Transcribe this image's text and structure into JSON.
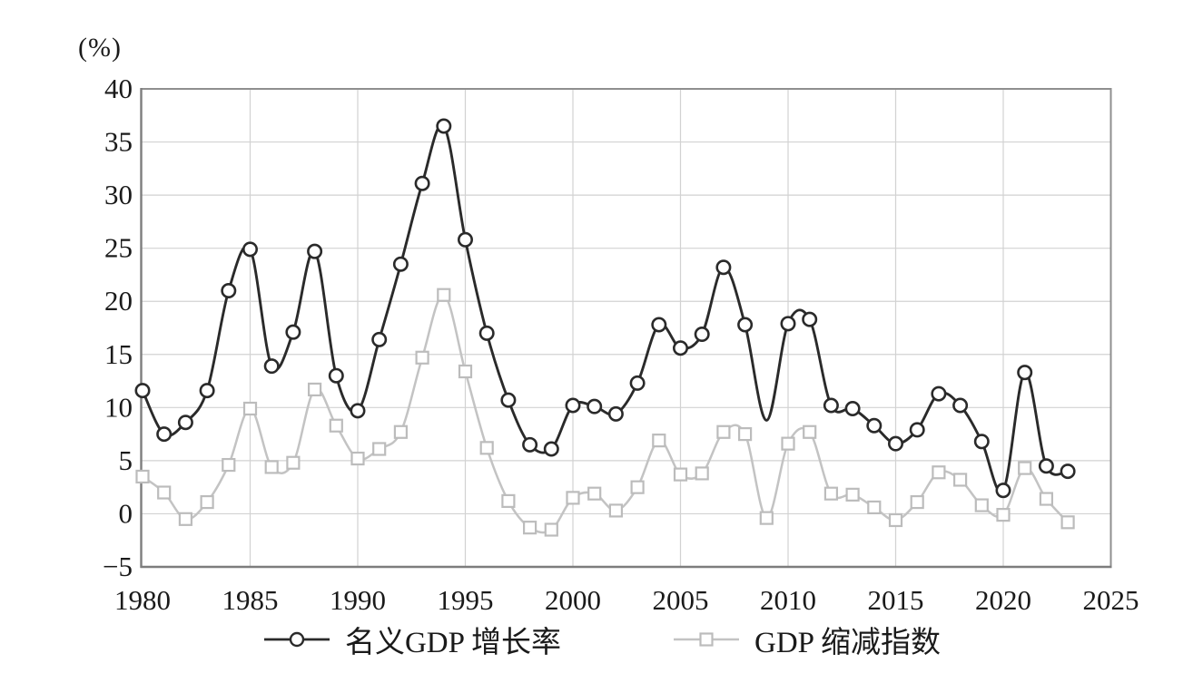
{
  "chart_data": {
    "type": "line",
    "smooth": true,
    "grid": true,
    "legend_position": "bottom",
    "x": [
      1980,
      1981,
      1982,
      1983,
      1984,
      1985,
      1986,
      1987,
      1988,
      1989,
      1990,
      1991,
      1992,
      1993,
      1994,
      1995,
      1996,
      1997,
      1998,
      1999,
      2000,
      2001,
      2002,
      2003,
      2004,
      2005,
      2006,
      2007,
      2008,
      2009,
      2010,
      2011,
      2012,
      2013,
      2014,
      2015,
      2016,
      2017,
      2018,
      2019,
      2020,
      2021,
      2022,
      2023
    ],
    "series": [
      {
        "name": "名义GDP 增长率",
        "marker": "circle",
        "line_color": "#2a2a2a",
        "marker_stroke": "#2a2a2a",
        "marker_fill": "#ffffff",
        "values": [
          11.6,
          7.5,
          8.6,
          11.6,
          21.0,
          24.9,
          13.9,
          17.1,
          24.7,
          13.0,
          9.7,
          16.4,
          23.5,
          31.1,
          36.5,
          25.8,
          17.0,
          10.7,
          6.5,
          6.1,
          10.2,
          10.1,
          9.4,
          12.3,
          17.8,
          15.6,
          16.9,
          23.2,
          17.8,
          8.8,
          17.9,
          18.3,
          10.2,
          9.9,
          8.3,
          6.6,
          7.9,
          11.3,
          10.2,
          6.8,
          2.2,
          13.3,
          4.5,
          4.0
        ],
        "no_marker_years": [
          2009
        ]
      },
      {
        "name": "GDP 缩减指数",
        "marker": "square",
        "line_color": "#c3c3c3",
        "marker_stroke": "#bcbcbc",
        "marker_fill": "#ffffff",
        "values": [
          3.5,
          2.0,
          -0.5,
          1.1,
          4.6,
          9.9,
          4.4,
          4.8,
          11.7,
          8.3,
          5.2,
          6.1,
          7.7,
          14.7,
          20.6,
          13.4,
          6.2,
          1.2,
          -1.3,
          -1.5,
          1.5,
          1.9,
          0.3,
          2.5,
          6.9,
          3.7,
          3.8,
          7.7,
          7.5,
          -0.4,
          6.6,
          7.7,
          1.9,
          1.8,
          0.6,
          -0.6,
          1.1,
          3.9,
          3.2,
          0.8,
          -0.1,
          4.3,
          1.4,
          -0.8
        ],
        "no_marker_years": []
      }
    ],
    "legend": [
      {
        "label": "名义GDP 增长率"
      },
      {
        "label": "GDP 缩减指数"
      }
    ],
    "x_axis": {
      "min": 1980,
      "max": 2025,
      "tick_step": 5,
      "tick_labels": [
        "1980",
        "1985",
        "1990",
        "1995",
        "2000",
        "2005",
        "2010",
        "2015",
        "2020",
        "2025"
      ]
    },
    "y_axis": {
      "min": -5,
      "max": 40,
      "tick_step": 5,
      "unit": "(%)",
      "tick_labels": [
        "−5",
        "0",
        "5",
        "10",
        "15",
        "20",
        "25",
        "30",
        "35",
        "40"
      ]
    },
    "colors": {
      "plot_border": "#8f8f8f",
      "axis_line": "#7d7d7d",
      "grid_line": "#d2d2d2",
      "text": "#1a1a1a"
    }
  }
}
